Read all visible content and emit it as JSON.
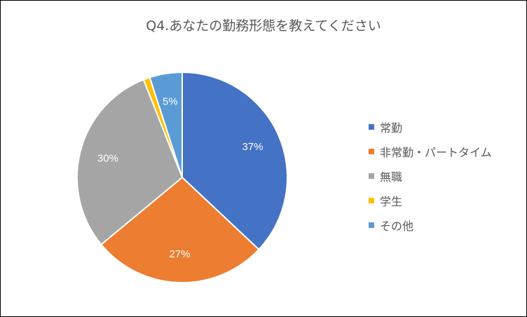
{
  "chart_data": {
    "type": "pie",
    "title": "Q4.あなたの勤務形態を教えてください",
    "categories": [
      "常勤",
      "非常勤・パートタイム",
      "無職",
      "学生",
      "その他"
    ],
    "values": [
      37,
      27,
      30,
      1,
      5
    ],
    "data_labels": [
      "37%",
      "27%",
      "30%",
      "",
      "5%"
    ],
    "colors": [
      "#4472C4",
      "#ED7D31",
      "#A5A5A5",
      "#FFC000",
      "#5B9BD5"
    ],
    "legend_position": "right"
  }
}
